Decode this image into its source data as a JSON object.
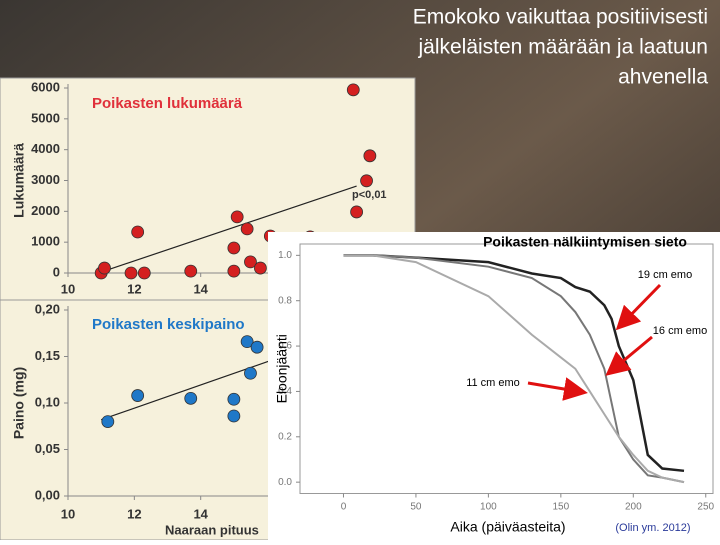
{
  "title_lines": [
    "Emokoko vaikuttaa positiivisesti",
    "jälkeläisten määrään ja laatuun",
    "ahvenella"
  ],
  "chart_data": [
    {
      "type": "scatter",
      "title": "Poikasten lukumäärä",
      "y_label": "Lukumäärä",
      "annotation": "p<0,01",
      "x": [
        11.0,
        11.1,
        11.9,
        12.1,
        12.3,
        13.7,
        15.0,
        15.0,
        15.1,
        15.4,
        15.5,
        15.8,
        16.1,
        17.3,
        18.6,
        19.1,
        19.0,
        18.7
      ],
      "values": [
        0,
        160,
        0,
        1330,
        0,
        60,
        60,
        810,
        1820,
        1430,
        360,
        160,
        1200,
        1170,
        5940,
        3800,
        2990,
        1980
      ],
      "color": "#d42020",
      "trend": {
        "x": [
          11.0,
          18.7
        ],
        "y": [
          30,
          2820
        ]
      },
      "xlim": [
        10,
        20.4
      ],
      "xticks": [
        10,
        12,
        14
      ],
      "ylim": [
        0,
        6000
      ],
      "yticks": [
        0,
        1000,
        2000,
        3000,
        4000,
        5000,
        6000
      ]
    },
    {
      "type": "scatter",
      "title": "Poikasten keskipaino",
      "y_label": "Paino (mg)",
      "x_label": "Naaraan pituus",
      "x": [
        11.2,
        12.1,
        13.7,
        15.0,
        15.0,
        15.4,
        15.7,
        15.5
      ],
      "values": [
        0.08,
        0.108,
        0.105,
        0.086,
        0.104,
        0.166,
        0.16,
        0.132
      ],
      "color": "#1f78c8",
      "trend": {
        "x": [
          11.0,
          18.7
        ],
        "y": [
          0.082,
          0.178
        ]
      },
      "xlim": [
        10,
        20.4
      ],
      "xticks": [
        10,
        12,
        14
      ],
      "ylim": [
        0,
        0.2
      ],
      "yticks": [
        {
          "value": 0,
          "label": "0,00"
        },
        {
          "value": 0.05,
          "label": "0,05"
        },
        {
          "value": 0.1,
          "label": "0,10"
        },
        {
          "value": 0.15,
          "label": "0,15"
        },
        {
          "value": 0.2,
          "label": "0,20"
        }
      ]
    },
    {
      "type": "line",
      "title": "Poikasten nälkiintymisen sieto",
      "y_label": "Eloonjäänti",
      "x_label": "Aika (päiväasteita)",
      "note": "(Olin ym. 2012)",
      "x": [
        0,
        20,
        50,
        100,
        130,
        150,
        160,
        170,
        180,
        185,
        190,
        200,
        210,
        220,
        235
      ],
      "series": [
        {
          "name": "19 cm emo",
          "color": "#222222",
          "values": [
            1.0,
            1.0,
            0.99,
            0.97,
            0.92,
            0.9,
            0.86,
            0.84,
            0.78,
            0.72,
            0.6,
            0.45,
            0.12,
            0.06,
            0.05
          ]
        },
        {
          "name": "16 cm emo",
          "color": "#777777",
          "values": [
            1.0,
            1.0,
            0.99,
            0.95,
            0.9,
            0.82,
            0.75,
            0.65,
            0.5,
            0.35,
            0.2,
            0.1,
            0.03,
            0.02,
            0.0
          ]
        },
        {
          "name": "11 cm emo",
          "color": "#aaaaaa",
          "values": [
            1.0,
            1.0,
            0.97,
            0.82,
            0.65,
            0.55,
            0.5,
            0.4,
            0.3,
            0.25,
            0.2,
            0.12,
            0.05,
            0.02,
            0.0
          ]
        }
      ],
      "xlim": [
        -30,
        255
      ],
      "xticks": [
        0,
        50,
        100,
        150,
        200,
        250
      ],
      "ylim": [
        -0.05,
        1.05
      ],
      "yticks": [
        {
          "value": 0,
          "label": "0.0"
        },
        {
          "value": 0.2,
          "label": "0.2"
        },
        {
          "value": 0.4,
          "label": "0.4"
        },
        {
          "value": 0.6,
          "label": "0.6"
        },
        {
          "value": 0.8,
          "label": "0.8"
        },
        {
          "value": 1,
          "label": "1.0"
        }
      ]
    }
  ]
}
